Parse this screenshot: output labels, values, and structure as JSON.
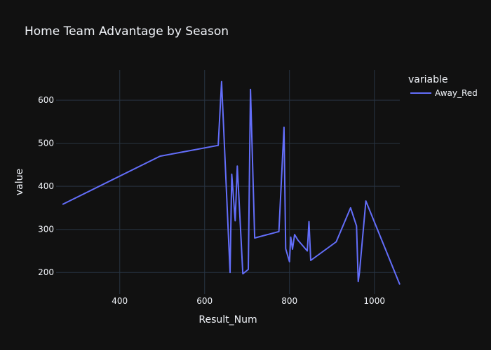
{
  "chart_data": {
    "type": "line",
    "title": "Home Team Advantage by Season",
    "xlabel": "Result_Num",
    "ylabel": "value",
    "xlim": [
      250,
      1060
    ],
    "ylim": [
      150,
      670
    ],
    "xticks": [
      400,
      600,
      800,
      1000
    ],
    "yticks": [
      200,
      300,
      400,
      500,
      600
    ],
    "grid": true,
    "legend": {
      "title": "variable",
      "placement": "right"
    },
    "series": [
      {
        "name": "Away_Red",
        "color": "#636efa",
        "x": [
          265,
          495,
          632,
          640,
          660,
          664,
          672,
          677,
          690,
          703,
          708,
          718,
          775,
          787,
          791,
          800,
          803,
          807,
          812,
          820,
          842,
          846,
          850,
          910,
          944,
          958,
          962,
          965,
          980,
          1060
        ],
        "y": [
          358,
          470,
          495,
          643,
          200,
          428,
          320,
          447,
          197,
          207,
          625,
          280,
          295,
          537,
          255,
          225,
          282,
          254,
          288,
          275,
          250,
          318,
          228,
          271,
          350,
          308,
          179,
          200,
          366,
          172
        ]
      }
    ]
  }
}
